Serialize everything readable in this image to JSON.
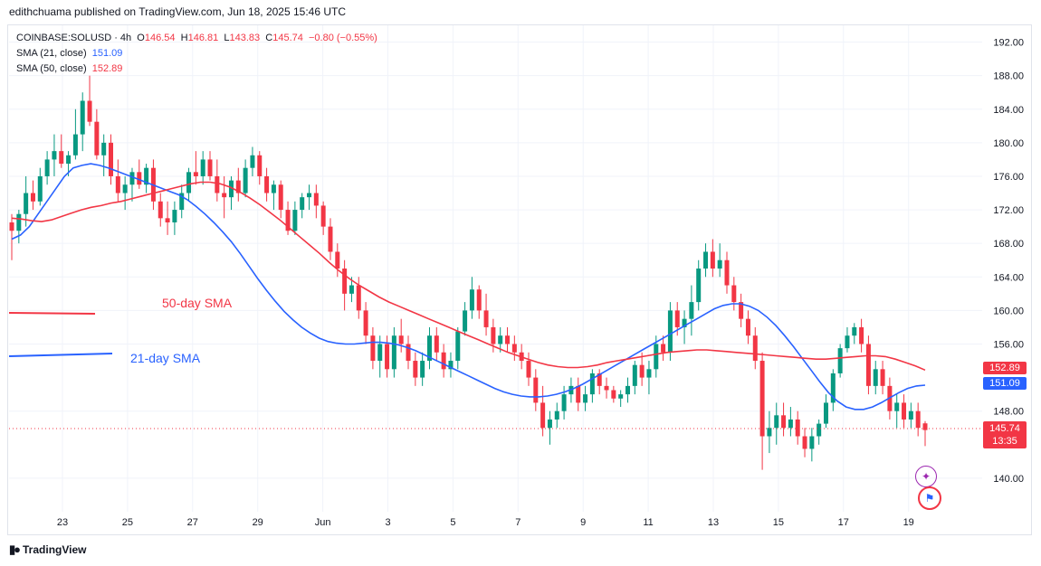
{
  "header": {
    "credit": "edithchuama published on TradingView.com, Jun 18, 2025 15:46 UTC"
  },
  "legend": {
    "symbol": "COINBASE:SOLUSD · 4h",
    "o_label": "O",
    "o": "146.54",
    "h_label": "H",
    "h": "146.81",
    "l_label": "L",
    "l": "143.83",
    "c_label": "C",
    "c": "145.74",
    "change": "−0.80 (−0.55%)",
    "sma21_label": "SMA (21, close)",
    "sma21_value": "151.09",
    "sma50_label": "SMA (50, close)",
    "sma50_value": "152.89"
  },
  "annotations": {
    "sma50": "50-day SMA",
    "sma21": "21-day SMA"
  },
  "price_tags": {
    "sma50": "152.89",
    "sma21": "151.09",
    "last": "145.74",
    "countdown": "13:35"
  },
  "footer": {
    "brand": "TradingView"
  },
  "colors": {
    "up": "#089981",
    "down": "#f23645",
    "sma21": "#2962ff",
    "sma50": "#f23645",
    "grid": "#f0f3fa"
  },
  "icons": [
    "tradingview-logo-icon",
    "sparkle-icon",
    "flag-icon"
  ],
  "chart_data": {
    "type": "candlestick",
    "ylim": [
      136,
      194
    ],
    "y_ticks": [
      "192.00",
      "188.00",
      "184.00",
      "180.00",
      "176.00",
      "172.00",
      "168.00",
      "164.00",
      "160.00",
      "156.00",
      "148.00",
      "140.00"
    ],
    "x_ticks": [
      "23",
      "25",
      "27",
      "29",
      "Jun",
      "3",
      "5",
      "7",
      "9",
      "11",
      "13",
      "15",
      "17",
      "19"
    ],
    "grid": true,
    "candles": [
      [
        170.5,
        171.5,
        166,
        169.5
      ],
      [
        169.5,
        172,
        168,
        171.5
      ],
      [
        171.5,
        176,
        170,
        174
      ],
      [
        174,
        175.5,
        172,
        173
      ],
      [
        173,
        177,
        172.5,
        176
      ],
      [
        176,
        179,
        175,
        178
      ],
      [
        178,
        181,
        176,
        179
      ],
      [
        179,
        181,
        177,
        177.5
      ],
      [
        177.5,
        179,
        176,
        178.5
      ],
      [
        178.5,
        184,
        178,
        181
      ],
      [
        181,
        186,
        179,
        185
      ],
      [
        185,
        188,
        182,
        182.5
      ],
      [
        182.5,
        184,
        178,
        178.5
      ],
      [
        178.5,
        181,
        176,
        180
      ],
      [
        180,
        181,
        175,
        176
      ],
      [
        176,
        178,
        173,
        174
      ],
      [
        174,
        176,
        172,
        175
      ],
      [
        175,
        177,
        173,
        176.5
      ],
      [
        176.5,
        178,
        174.5,
        175
      ],
      [
        175,
        177.5,
        174,
        177
      ],
      [
        177,
        178,
        172,
        173
      ],
      [
        173,
        174,
        170,
        171
      ],
      [
        171,
        173,
        169,
        170.5
      ],
      [
        170.5,
        173,
        169,
        172
      ],
      [
        172,
        175,
        171,
        174
      ],
      [
        174,
        177,
        173,
        176.5
      ],
      [
        176.5,
        179,
        175,
        176
      ],
      [
        176,
        179,
        175,
        178
      ],
      [
        178,
        179,
        175.5,
        176
      ],
      [
        176,
        178,
        173,
        174
      ],
      [
        174,
        176,
        171,
        173.5
      ],
      [
        173.5,
        176,
        172,
        175.5
      ],
      [
        175.5,
        177,
        173,
        174
      ],
      [
        174,
        178,
        173.5,
        177
      ],
      [
        177,
        179.5,
        176,
        178.5
      ],
      [
        178.5,
        179,
        175,
        176
      ],
      [
        176,
        177,
        173,
        174
      ],
      [
        174,
        175.5,
        172,
        175
      ],
      [
        175,
        175.5,
        171,
        172
      ],
      [
        172,
        173,
        169,
        169.5
      ],
      [
        169.5,
        173,
        169,
        172
      ],
      [
        172,
        174,
        171,
        173.5
      ],
      [
        173.5,
        175,
        172,
        174
      ],
      [
        174,
        175,
        171,
        172.5
      ],
      [
        172.5,
        173,
        169,
        170
      ],
      [
        170,
        171,
        166,
        167
      ],
      [
        167,
        168,
        164,
        165
      ],
      [
        165,
        166,
        160,
        162
      ],
      [
        162,
        164,
        161,
        163
      ],
      [
        163,
        164,
        159,
        160
      ],
      [
        160,
        161,
        156,
        157
      ],
      [
        157,
        158,
        153,
        154
      ],
      [
        154,
        157,
        152,
        156
      ],
      [
        156,
        157,
        152,
        153
      ],
      [
        153,
        158,
        152,
        157
      ],
      [
        157,
        159,
        155,
        156
      ],
      [
        156,
        157,
        153,
        154
      ],
      [
        154,
        155,
        151,
        152
      ],
      [
        152,
        155,
        151,
        154
      ],
      [
        154,
        158,
        153,
        157
      ],
      [
        157,
        158,
        154,
        155
      ],
      [
        155,
        156,
        152,
        153
      ],
      [
        153,
        155,
        152,
        154
      ],
      [
        154,
        158,
        153,
        157.5
      ],
      [
        157.5,
        161,
        157,
        160
      ],
      [
        160,
        164,
        159,
        162.5
      ],
      [
        162.5,
        163,
        159,
        160
      ],
      [
        160,
        162,
        157,
        158
      ],
      [
        158,
        159,
        155,
        156
      ],
      [
        156,
        158,
        155,
        157
      ],
      [
        157,
        158,
        155,
        156
      ],
      [
        156,
        157,
        154,
        155
      ],
      [
        155,
        156,
        153,
        154
      ],
      [
        154,
        155,
        151,
        152
      ],
      [
        152,
        153,
        148,
        149
      ],
      [
        149,
        151,
        145,
        146
      ],
      [
        146,
        148,
        144,
        147
      ],
      [
        147,
        149,
        146,
        148
      ],
      [
        148,
        151,
        147,
        150
      ],
      [
        150,
        152,
        149,
        151
      ],
      [
        151,
        152,
        148,
        149
      ],
      [
        149,
        151,
        148,
        150
      ],
      [
        150,
        153,
        149,
        152.5
      ],
      [
        152.5,
        153,
        150,
        151
      ],
      [
        151,
        152,
        149.5,
        150.5
      ],
      [
        150.5,
        151,
        149,
        149.5
      ],
      [
        149.5,
        150.5,
        148.5,
        150
      ],
      [
        150,
        152,
        149,
        151
      ],
      [
        151,
        154,
        150,
        153.5
      ],
      [
        153.5,
        155,
        151,
        152
      ],
      [
        152,
        154,
        150,
        153
      ],
      [
        153,
        157,
        152,
        156
      ],
      [
        156,
        157,
        154,
        155
      ],
      [
        155,
        161,
        154,
        160
      ],
      [
        160,
        161,
        157,
        158
      ],
      [
        158,
        160,
        156,
        159
      ],
      [
        159,
        163,
        157,
        161
      ],
      [
        161,
        166,
        160,
        165
      ],
      [
        165,
        168,
        164,
        167
      ],
      [
        167,
        168.5,
        164,
        165
      ],
      [
        165,
        168,
        164,
        166
      ],
      [
        166,
        167,
        162,
        163
      ],
      [
        163,
        164,
        160,
        161
      ],
      [
        161,
        162,
        158,
        159
      ],
      [
        159,
        160,
        156,
        157
      ],
      [
        157,
        158,
        153,
        154
      ],
      [
        154,
        155,
        141,
        145
      ],
      [
        145,
        148,
        143,
        146
      ],
      [
        146,
        149,
        144,
        147.5
      ],
      [
        147.5,
        149,
        145,
        146
      ],
      [
        146,
        148.5,
        145,
        147
      ],
      [
        147,
        148,
        144,
        145
      ],
      [
        145,
        146,
        142.5,
        143.5
      ],
      [
        143.5,
        146,
        142,
        145
      ],
      [
        145,
        147,
        144,
        146.5
      ],
      [
        146.5,
        150,
        146,
        149
      ],
      [
        149,
        153,
        148,
        152.5
      ],
      [
        152.5,
        156,
        152,
        155.5
      ],
      [
        155.5,
        158,
        155,
        157
      ],
      [
        157,
        158.5,
        156,
        158
      ],
      [
        158,
        159,
        155,
        156
      ],
      [
        156,
        157,
        150,
        151
      ],
      [
        151,
        154,
        150,
        153
      ],
      [
        153,
        154,
        150,
        151
      ],
      [
        151,
        152,
        147,
        148
      ],
      [
        148,
        150,
        146,
        149
      ],
      [
        149,
        150,
        146,
        147
      ],
      [
        147,
        149,
        146,
        148
      ],
      [
        148,
        149,
        145,
        146
      ],
      [
        146.54,
        146.81,
        143.83,
        145.74
      ]
    ],
    "series": [
      {
        "name": "SMA (21, close)",
        "values": [
          168.5,
          169,
          170,
          171.5,
          173,
          174.5,
          176,
          177,
          177.3,
          177.5,
          177.3,
          177,
          176.6,
          176.2,
          175.8,
          175.4,
          175,
          174.6,
          174.2,
          173.8,
          173.2,
          172.4,
          171.5,
          170.5,
          169.4,
          168.2,
          166.8,
          165.3,
          163.8,
          162.4,
          161.1,
          159.9,
          158.9,
          158,
          157.3,
          156.7,
          156.3,
          156.1,
          156,
          156,
          156.1,
          156.2,
          156.2,
          156.1,
          155.9,
          155.6,
          155.2,
          154.7,
          154.2,
          153.7,
          153.2,
          152.7,
          152.2,
          151.7,
          151.2,
          150.7,
          150.3,
          150,
          149.8,
          149.7,
          149.7,
          149.8,
          150,
          150.3,
          150.7,
          151.2,
          151.8,
          152.4,
          153,
          153.6,
          154.2,
          154.8,
          155.4,
          156,
          156.6,
          157.2,
          157.8,
          158.4,
          159,
          159.6,
          160.2,
          160.6,
          160.8,
          160.8,
          160.5,
          160,
          159.2,
          158.2,
          157,
          155.7,
          154.3,
          152.9,
          151.5,
          150.2,
          149.2,
          148.5,
          148.2,
          148.2,
          148.5,
          149,
          149.6,
          150.2,
          150.7,
          151,
          151.09
        ]
      },
      {
        "name": "SMA (50, close)",
        "values": [
          171,
          170.9,
          170.7,
          170.6,
          170.8,
          171.2,
          171.6,
          172,
          172.3,
          172.5,
          172.8,
          173,
          173.3,
          173.6,
          173.9,
          174.2,
          174.5,
          174.8,
          175.1,
          175.3,
          175.3,
          175.1,
          174.7,
          174.1,
          173.4,
          172.6,
          171.7,
          170.8,
          169.8,
          168.8,
          167.8,
          166.8,
          165.7,
          164.7,
          163.8,
          163,
          162.3,
          161.6,
          161,
          160.5,
          160,
          159.5,
          159,
          158.5,
          158,
          157.5,
          157,
          156.5,
          156,
          155.5,
          155,
          154.6,
          154.2,
          153.8,
          153.5,
          153.3,
          153.2,
          153.2,
          153.3,
          153.5,
          153.8,
          154,
          154.2,
          154.4,
          154.6,
          154.8,
          155,
          155.1,
          155.2,
          155.3,
          155.3,
          155.2,
          155.1,
          155,
          154.9,
          154.8,
          154.7,
          154.6,
          154.5,
          154.4,
          154.3,
          154.2,
          154.2,
          154.3,
          154.4,
          154.5,
          154.6,
          154.6,
          154.5,
          154.2,
          153.8,
          153.4,
          152.89
        ]
      }
    ]
  }
}
